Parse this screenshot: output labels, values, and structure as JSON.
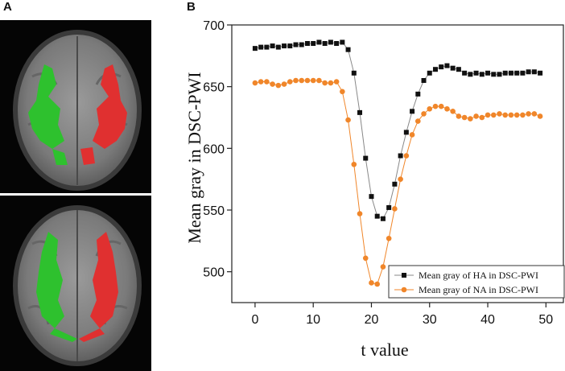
{
  "panels": {
    "a": "A",
    "b": "B"
  },
  "colors": {
    "ha_series": "#111111",
    "na_series": "#f0862a",
    "hemisphere_left_overlay": "#2ec12e",
    "hemisphere_right_overlay": "#e03030"
  },
  "chart_data": {
    "type": "scatter",
    "xlabel": "t value",
    "ylabel": "Mean gray in DSC-PWI",
    "xlim": [
      -4,
      53
    ],
    "ylim": [
      475,
      700
    ],
    "xticks": [
      0,
      10,
      20,
      30,
      40,
      50
    ],
    "yticks": [
      500,
      550,
      600,
      650,
      700
    ],
    "grid": false,
    "legend_position": "bottom-right",
    "x": [
      0,
      1,
      2,
      3,
      4,
      5,
      6,
      7,
      8,
      9,
      10,
      11,
      12,
      13,
      14,
      15,
      16,
      17,
      18,
      19,
      20,
      21,
      22,
      23,
      24,
      25,
      26,
      27,
      28,
      29,
      30,
      31,
      32,
      33,
      34,
      35,
      36,
      37,
      38,
      39,
      40,
      41,
      42,
      43,
      44,
      45,
      46,
      47,
      48,
      49
    ],
    "series": [
      {
        "name": "Mean gray of HA in DSC-PWI",
        "marker": "square",
        "values": [
          681,
          682,
          682,
          683,
          682,
          683,
          683,
          684,
          684,
          685,
          685,
          686,
          685,
          686,
          685,
          686,
          680,
          661,
          629,
          592,
          561,
          545,
          543,
          552,
          571,
          594,
          613,
          630,
          644,
          655,
          661,
          664,
          666,
          667,
          665,
          664,
          661,
          660,
          661,
          660,
          661,
          660,
          660,
          661,
          661,
          661,
          661,
          662,
          662,
          661
        ]
      },
      {
        "name": "Mean gray of NA in DSC-PWI",
        "marker": "circle",
        "values": [
          653,
          654,
          654,
          652,
          651,
          652,
          654,
          655,
          655,
          655,
          655,
          655,
          653,
          653,
          654,
          646,
          623,
          587,
          547,
          511,
          491,
          490,
          504,
          527,
          551,
          575,
          594,
          611,
          622,
          628,
          632,
          634,
          634,
          632,
          630,
          626,
          625,
          624,
          626,
          625,
          627,
          627,
          628,
          627,
          627,
          627,
          627,
          628,
          628,
          626
        ]
      }
    ]
  },
  "brain_images": [
    {
      "depicts": "axial MRI slice with bilateral colored overlays"
    },
    {
      "depicts": "axial MRI slice with bilateral colored overlays"
    }
  ]
}
